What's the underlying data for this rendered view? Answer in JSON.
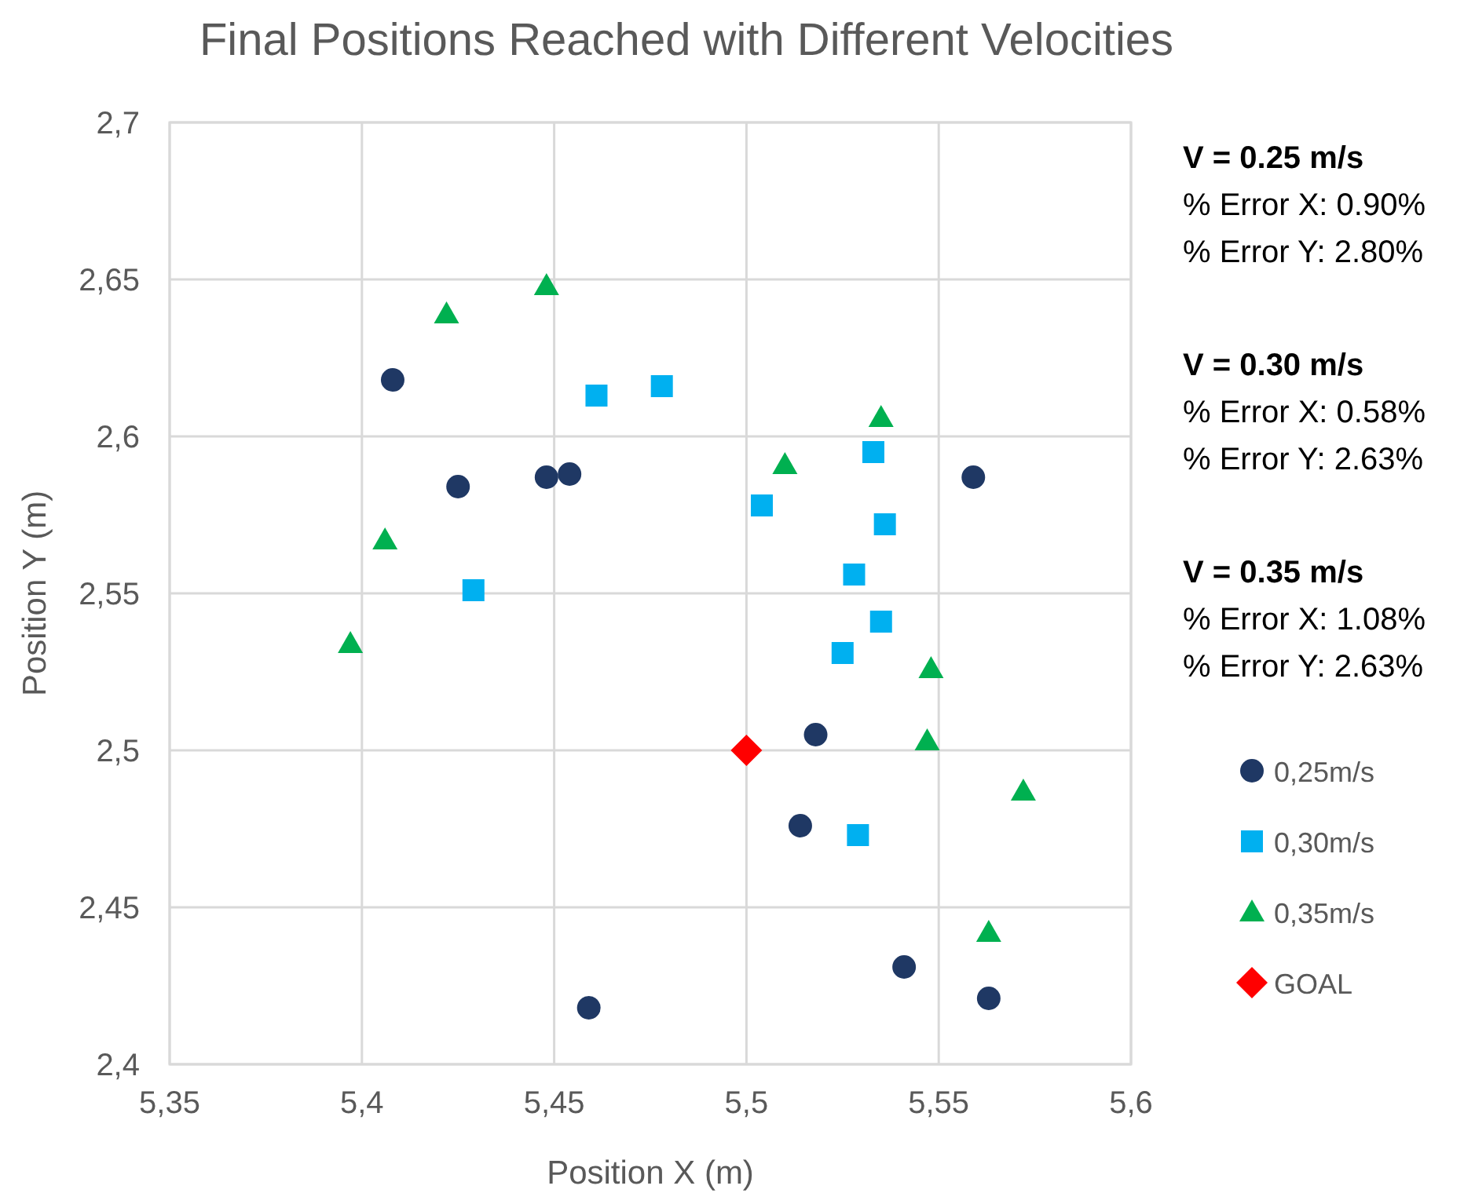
{
  "chart_data": {
    "type": "scatter",
    "title": "Final Positions Reached with Different Velocities",
    "xlabel": "Position X (m)",
    "ylabel": "Position Y (m)",
    "xlim": [
      5.35,
      5.6
    ],
    "ylim": [
      2.4,
      2.7
    ],
    "xticks": [
      {
        "value": 5.35,
        "label": "5,35"
      },
      {
        "value": 5.4,
        "label": "5,4"
      },
      {
        "value": 5.45,
        "label": "5,45"
      },
      {
        "value": 5.5,
        "label": "5,5"
      },
      {
        "value": 5.55,
        "label": "5,55"
      },
      {
        "value": 5.6,
        "label": "5,6"
      }
    ],
    "yticks": [
      {
        "value": 2.4,
        "label": "2,4"
      },
      {
        "value": 2.45,
        "label": "2,45"
      },
      {
        "value": 2.5,
        "label": "2,5"
      },
      {
        "value": 2.55,
        "label": "2,55"
      },
      {
        "value": 2.6,
        "label": "2,6"
      },
      {
        "value": 2.65,
        "label": "2,65"
      },
      {
        "value": 2.7,
        "label": "2,7"
      }
    ],
    "grid": true,
    "legend": "right",
    "series": [
      {
        "name": "0,25m/s",
        "color": "#1f3864",
        "marker": "circle",
        "x": [
          5.408,
          5.425,
          5.448,
          5.454,
          5.559,
          5.518,
          5.514,
          5.541,
          5.563,
          5.459
        ],
        "values": [
          2.618,
          2.584,
          2.587,
          2.588,
          2.587,
          2.505,
          2.476,
          2.431,
          2.421,
          2.418
        ]
      },
      {
        "name": "0,30m/s",
        "color": "#00b0f0",
        "marker": "square",
        "x": [
          5.461,
          5.478,
          5.533,
          5.504,
          5.536,
          5.429,
          5.528,
          5.535,
          5.525,
          5.529
        ],
        "values": [
          2.613,
          2.616,
          2.595,
          2.578,
          2.572,
          2.551,
          2.556,
          2.541,
          2.531,
          2.473
        ]
      },
      {
        "name": "0,35m/s",
        "color": "#00b050",
        "marker": "triangle",
        "x": [
          5.422,
          5.448,
          5.535,
          5.51,
          5.406,
          5.397,
          5.548,
          5.547,
          5.572,
          5.563
        ],
        "values": [
          2.639,
          2.648,
          2.606,
          2.591,
          2.567,
          2.534,
          2.526,
          2.503,
          2.487,
          2.442
        ]
      },
      {
        "name": "GOAL",
        "color": "#ff0000",
        "marker": "diamond",
        "x": [
          5.5
        ],
        "values": [
          2.5
        ]
      }
    ],
    "annotations": [
      "V = 0.25 m/s",
      "% Error X: 0.90%",
      "% Error Y: 2.80%",
      "V = 0.30 m/s",
      "% Error X: 0.58%",
      "% Error Y: 2.63%",
      "V = 0.35 m/s",
      "% Error X: 1.08%",
      "% Error Y: 2.63%"
    ]
  }
}
